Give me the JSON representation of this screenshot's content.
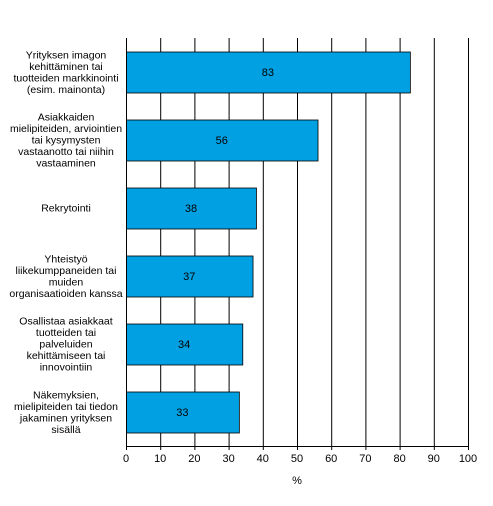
{
  "chart_data": {
    "type": "bar",
    "orientation": "horizontal",
    "categories": [
      [
        "Yrityksen imagon",
        "kehittäminen tai",
        "tuotteiden markkinointi",
        "(esim. mainonta)"
      ],
      [
        "Asiakkaiden",
        "mielipiteiden, arviointien",
        "tai kysymysten",
        "vastaanotto tai niihin",
        "vastaaminen"
      ],
      [
        "Rekrytointi"
      ],
      [
        "Yhteistyö",
        "liikekumppaneiden tai",
        "muiden",
        "organisaatioiden kanssa"
      ],
      [
        "Osallistaa asiakkaat",
        "tuotteiden tai",
        "palveluiden",
        "kehittämiseen tai",
        "innovointiin"
      ],
      [
        "Näkemyksien,",
        "mielipiteiden tai tiedon",
        "jakaminen yrityksen",
        "sisällä"
      ]
    ],
    "values": [
      83,
      56,
      38,
      37,
      34,
      33
    ],
    "data_labels": [
      "83",
      "56",
      "38",
      "37",
      "34",
      "33"
    ],
    "xlim": [
      0,
      100
    ],
    "xticks": [
      "0",
      "10",
      "20",
      "30",
      "40",
      "50",
      "60",
      "70",
      "80",
      "90",
      "100"
    ],
    "xlabel": "%",
    "grid": "vertical",
    "bar_color": "#00a0e3",
    "bar_edge_color": "#000000",
    "grid_color": "#000000"
  }
}
